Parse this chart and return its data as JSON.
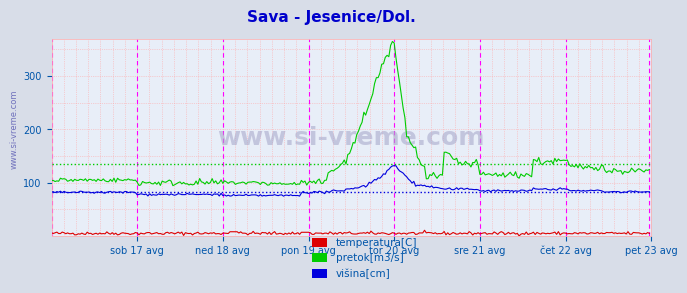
{
  "title": "Sava - Jesenice/Dol.",
  "title_color": "#0000cc",
  "background_color": "#d8dde8",
  "plot_bg_color": "#e8eef8",
  "grid_color_minor": "#ffaaaa",
  "grid_color_major": "#ff00ff",
  "ylabel_color": "#0055aa",
  "tick_color": "#0055aa",
  "x_tick_labels": [
    "sob 17 avg",
    "ned 18 avg",
    "pon 19 avg",
    "tor 20 avg",
    "sre 21 avg",
    "čet 22 avg",
    "pet 23 avg"
  ],
  "x_tick_positions": [
    48,
    96,
    144,
    192,
    240,
    288,
    336
  ],
  "n_points": 336,
  "ylim": [
    0,
    370
  ],
  "yticks": [
    100,
    200,
    300
  ],
  "watermark": "www.si-vreme.com",
  "legend": [
    {
      "label": "temperatura[C]",
      "color": "#dd0000"
    },
    {
      "label": "pretok[m3/s]",
      "color": "#00cc00"
    },
    {
      "label": "višina[cm]",
      "color": "#0000dd"
    }
  ],
  "avg_temp": 5,
  "avg_pretok": 135,
  "avg_visina": 83,
  "temp_color": "#dd0000",
  "pretok_color": "#00cc00",
  "visina_color": "#0000dd"
}
